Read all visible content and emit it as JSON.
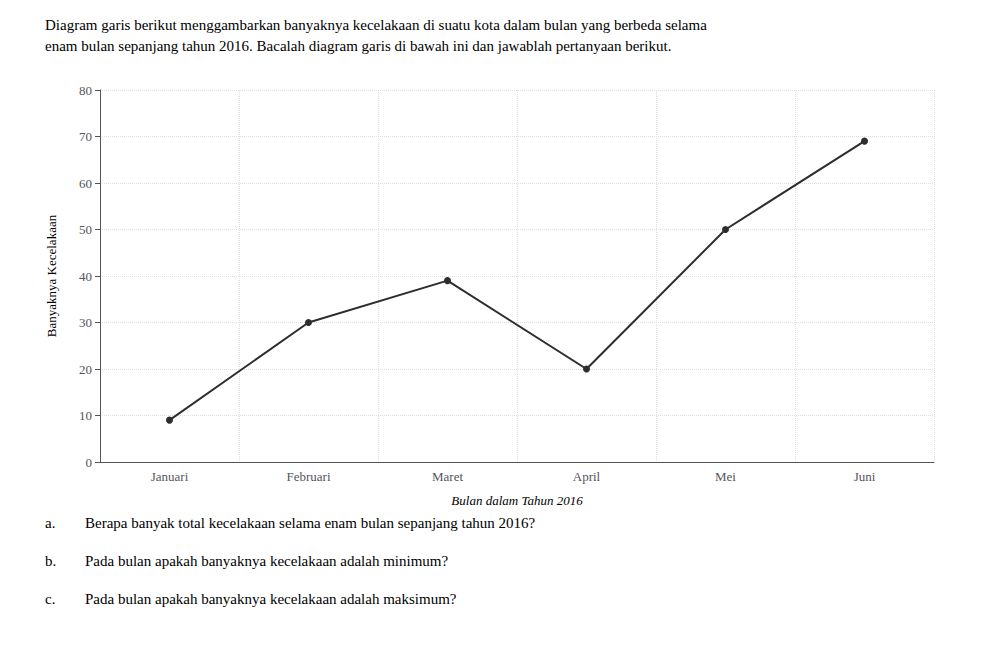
{
  "chart_data": {
    "type": "line",
    "title": "Diagram garis berikut menggambarkan banyaknya kecelakaan di suatu kota dalam bulan yang berbeda selama",
    "subtitle": "enam bulan sepanjang tahun 2016. Bacalah diagram garis di bawah ini dan jawablah pertanyaan berikut.",
    "x_label": "Bulan dalam Tahun 2016",
    "y_label": "Banyaknya Kecelakaan",
    "categories": [
      "Januari",
      "Februari",
      "Maret",
      "April",
      "Mei",
      "Juni"
    ],
    "values": [
      9,
      30,
      39,
      20,
      50,
      69
    ],
    "color": "#2d2d2d",
    "marker": "circle",
    "ylim": [
      0,
      80
    ],
    "yticks": [
      0,
      10,
      20,
      30,
      40,
      50,
      60,
      70,
      80
    ],
    "grid": true,
    "annotations": [
      {
        "label": "a.",
        "text": "Berapa banyak total kecelakaan selama enam bulan sepanjang tahun 2016?"
      },
      {
        "label": "b.",
        "text": "Pada bulan apakah banyaknya kecelakaan adalah minimum?"
      },
      {
        "label": "c.",
        "text": "Pada bulan apakah banyaknya kecelakaan adalah maksimum?"
      }
    ]
  }
}
